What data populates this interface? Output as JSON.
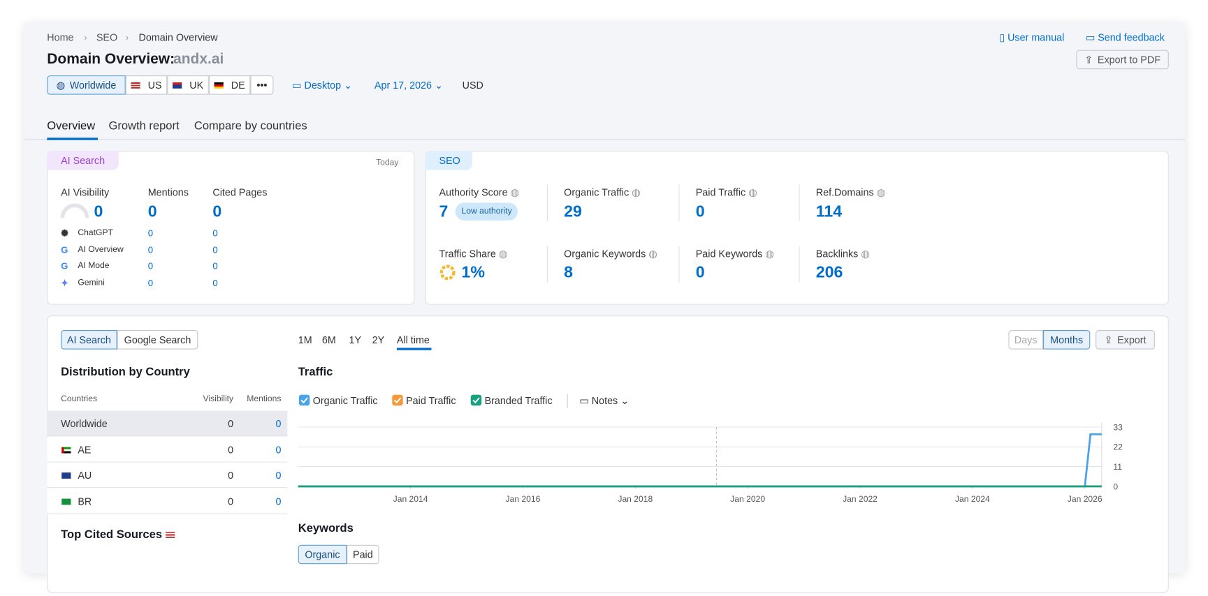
{
  "breadcrumb": [
    "Home",
    "SEO",
    "Domain Overview"
  ],
  "header": {
    "title": "Domain Overview:",
    "domain": "andx.ai",
    "user_manual": "User manual",
    "send_feedback": "Send feedback",
    "export_pdf": "Export to PDF"
  },
  "filters": {
    "regions": [
      "Worldwide",
      "US",
      "UK",
      "DE"
    ],
    "more": "•••",
    "device": "Desktop",
    "date": "Apr 17, 2026",
    "currency": "USD"
  },
  "tabs": [
    "Overview",
    "Growth report",
    "Compare by countries"
  ],
  "ai_search": {
    "badge": "AI Search",
    "date": "Today",
    "metrics": [
      {
        "label": "AI Visibility",
        "value": 0
      },
      {
        "label": "Mentions",
        "value": 0
      },
      {
        "label": "Cited Pages",
        "value": 0
      }
    ],
    "rows": [
      {
        "name": "ChatGPT",
        "mentions": 0,
        "cited": 0
      },
      {
        "name": "AI Overview",
        "mentions": 0,
        "cited": 0
      },
      {
        "name": "AI Mode",
        "mentions": 0,
        "cited": 0
      },
      {
        "name": "Gemini",
        "mentions": 0,
        "cited": 0
      }
    ]
  },
  "seo": {
    "badge": "SEO",
    "metrics": [
      {
        "label": "Authority Score",
        "value": 7,
        "tag": "Low authority"
      },
      {
        "label": "Organic Traffic",
        "value": 29
      },
      {
        "label": "Paid Traffic",
        "value": 0
      },
      {
        "label": "Ref.Domains",
        "value": 114
      },
      {
        "label": "Traffic Share",
        "value": "1%"
      },
      {
        "label": "Organic Keywords",
        "value": 8
      },
      {
        "label": "Paid Keywords",
        "value": 0
      },
      {
        "label": "Backlinks",
        "value": 206
      }
    ]
  },
  "distribution": {
    "toggle": [
      "AI Search",
      "Google Search"
    ],
    "title": "Distribution by Country",
    "columns": [
      "Countries",
      "Visibility",
      "Mentions"
    ],
    "rows": [
      [
        "Worldwide",
        0,
        0
      ],
      [
        "AE",
        0,
        0
      ],
      [
        "AU",
        0,
        0
      ],
      [
        "BR",
        0,
        0
      ]
    ],
    "top_cited": "Top Cited Sources"
  },
  "traffic": {
    "periods": [
      "1M",
      "6M",
      "1Y",
      "2Y",
      "All time"
    ],
    "granularity": [
      "Days",
      "Months"
    ],
    "export": "Export",
    "title": "Traffic",
    "notes": "Notes",
    "chart": {
      "type": "line",
      "x": [
        2012,
        2026,
        2026.1,
        2026.2,
        2026.3
      ],
      "series": [
        {
          "name": "Organic Traffic",
          "color": "#4aa3e8",
          "values": [
            0,
            0,
            29,
            29,
            29
          ]
        },
        {
          "name": "Paid Traffic",
          "color": "#f59a3c",
          "values": [
            0,
            0,
            0,
            0,
            0
          ]
        },
        {
          "name": "Branded Traffic",
          "color": "#17a07e",
          "values": [
            0,
            0,
            0,
            0,
            0
          ]
        }
      ],
      "xlim": [
        2012,
        2026.3
      ],
      "xticks": [
        {
          "value": 2014,
          "label": "Jan 2014"
        },
        {
          "value": 2016,
          "label": "Jan 2016"
        },
        {
          "value": 2018,
          "label": "Jan 2018"
        },
        {
          "value": 2020,
          "label": "Jan 2020"
        },
        {
          "value": 2022,
          "label": "Jan 2022"
        },
        {
          "value": 2024,
          "label": "Jan 2024"
        },
        {
          "value": 2026,
          "label": "Jan 2026"
        }
      ],
      "ylim": [
        0,
        33
      ],
      "yticks": [
        0,
        11,
        22,
        33
      ],
      "grid": true
    }
  },
  "keywords": {
    "title": "Keywords",
    "toggle": [
      "Organic",
      "Paid"
    ]
  }
}
